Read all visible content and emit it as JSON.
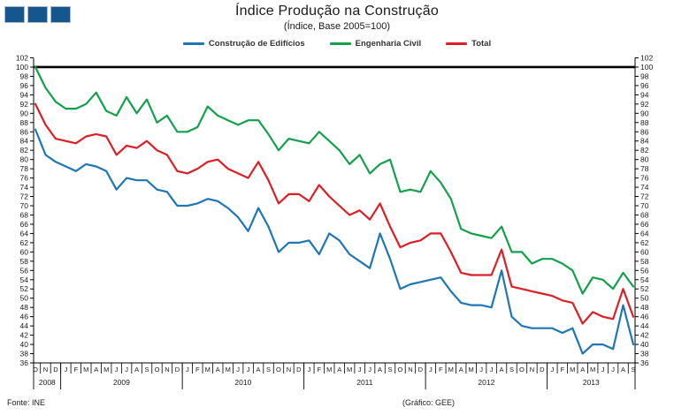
{
  "header": {
    "title": "Índice Produção na Construção",
    "subtitle": "(Índice, Base 2005=100)"
  },
  "logo": {
    "squares": 3,
    "fill": "#15568C",
    "border": "#A8BACC"
  },
  "legend": [
    {
      "label": "Construção de Edifícios",
      "color": "#1E76B4"
    },
    {
      "label": "Engenharia Civil",
      "color": "#12A14B"
    },
    {
      "label": "Total",
      "color": "#DC1E25"
    }
  ],
  "footer": {
    "source": "Fonte: INE",
    "credit": "(Gráfico:  GEE)"
  },
  "chart_data": {
    "type": "line",
    "title": "Índice Produção na Construção",
    "subtitle": "(Índice, Base 2005=100)",
    "ylim": [
      36,
      102
    ],
    "ytick_step": 2,
    "reference_line": 100,
    "grid": false,
    "legend_position": "top",
    "x_months": [
      "O",
      "N",
      "D",
      "J",
      "F",
      "M",
      "A",
      "M",
      "J",
      "J",
      "A",
      "S",
      "O",
      "N",
      "D",
      "J",
      "F",
      "M",
      "A",
      "M",
      "J",
      "J",
      "A",
      "S",
      "O",
      "N",
      "D",
      "J",
      "F",
      "M",
      "A",
      "M",
      "J",
      "J",
      "A",
      "S",
      "O",
      "N",
      "D",
      "J",
      "F",
      "M",
      "A",
      "M",
      "J",
      "J",
      "A",
      "S",
      "O",
      "N",
      "D",
      "J",
      "F",
      "M",
      "A",
      "M",
      "J",
      "J",
      "A",
      "S"
    ],
    "year_spans": [
      {
        "year": "2008",
        "months": 3
      },
      {
        "year": "2009",
        "months": 12
      },
      {
        "year": "2010",
        "months": 12
      },
      {
        "year": "2011",
        "months": 12
      },
      {
        "year": "2012",
        "months": 12
      },
      {
        "year": "2013",
        "months": 9
      }
    ],
    "series": [
      {
        "name": "Construção de Edifícios",
        "color": "#1E76B4",
        "values": [
          86.5,
          81,
          79.5,
          78.5,
          77.5,
          79,
          78.5,
          77.5,
          73.5,
          76,
          75.5,
          75.5,
          73.5,
          73,
          70,
          70,
          70.5,
          71.5,
          71,
          69.5,
          67.5,
          64.5,
          69.5,
          65.5,
          60,
          62,
          62,
          62.5,
          59.5,
          64,
          62.5,
          59.5,
          58,
          56.5,
          64,
          58.5,
          52,
          53,
          53.5,
          54,
          54.5,
          51.5,
          49,
          48.5,
          48.5,
          48,
          56,
          46,
          44,
          43.5,
          43.5,
          43.5,
          42.5,
          43.5,
          38,
          40,
          40,
          39,
          48.5,
          40
        ]
      },
      {
        "name": "Engenharia Civil",
        "color": "#12A14B",
        "values": [
          100,
          95.5,
          92.5,
          91,
          91,
          92,
          94.5,
          90.5,
          89.5,
          93.5,
          90,
          93,
          88,
          89.5,
          86,
          86,
          87,
          91.5,
          89.5,
          88.5,
          87.5,
          88.5,
          88.5,
          85.5,
          82,
          84.5,
          84,
          83.5,
          86,
          84,
          82,
          79,
          81,
          77,
          79,
          80,
          73,
          73.5,
          73,
          77.5,
          75,
          71.5,
          65,
          64,
          63.5,
          63,
          65.5,
          60,
          60,
          57.5,
          58.5,
          58.5,
          57.5,
          56,
          51,
          54.5,
          54,
          52,
          55.5,
          52.5
        ]
      },
      {
        "name": "Total",
        "color": "#DC1E25",
        "values": [
          92,
          87.5,
          84.5,
          84,
          83.5,
          85,
          85.5,
          85,
          81,
          83,
          82.5,
          84,
          82,
          81,
          77.5,
          77,
          78,
          79.5,
          80,
          78,
          77,
          76,
          79.5,
          75.5,
          70.5,
          72.5,
          72.5,
          71,
          74.5,
          72,
          70,
          68,
          69,
          67,
          70.5,
          65.5,
          61,
          62,
          62.5,
          64,
          64,
          60,
          55.5,
          55,
          55,
          55,
          60.5,
          52.5,
          52,
          51.5,
          51,
          50.5,
          49.5,
          49,
          44.5,
          47,
          46,
          45.5,
          52,
          46
        ]
      }
    ]
  }
}
